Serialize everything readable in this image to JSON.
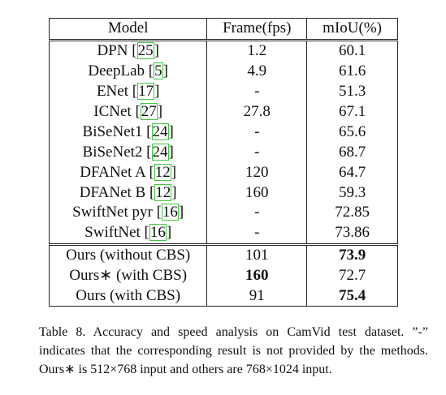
{
  "table": {
    "header": [
      "Model",
      "Frame(fps)",
      "mIoU(%)"
    ],
    "groups": [
      [
        {
          "cells": [
            "DPN",
            "1.2",
            "60.1"
          ],
          "ref": "[25]"
        },
        {
          "cells": [
            "DeepLab",
            "4.9",
            "61.6"
          ],
          "ref": "[5]"
        },
        {
          "cells": [
            "ENet",
            "-",
            "51.3"
          ],
          "ref": "[17]"
        },
        {
          "cells": [
            "ICNet",
            "27.8",
            "67.1"
          ],
          "ref": "[27]"
        },
        {
          "cells": [
            "BiSeNet1",
            "-",
            "65.6"
          ],
          "ref": "[24]"
        },
        {
          "cells": [
            "BiSeNet2",
            "-",
            "68.7"
          ],
          "ref": "[24]"
        },
        {
          "cells": [
            "DFANet A",
            "120",
            "64.7"
          ],
          "ref": "[12]"
        },
        {
          "cells": [
            "DFANet B",
            "160",
            "59.3"
          ],
          "ref": "[12]"
        },
        {
          "cells": [
            "SwiftNet pyr",
            "-",
            "72.85"
          ],
          "ref": "[16]"
        },
        {
          "cells": [
            "SwiftNet",
            "-",
            "73.86"
          ],
          "ref": "[16]"
        }
      ],
      [
        {
          "cells": [
            "Ours (without CBS)",
            "101",
            "73.9"
          ],
          "bold": [
            2
          ]
        },
        {
          "cells": [
            "Ours∗ (with CBS)",
            "160",
            "72.7"
          ],
          "bold": [
            1
          ]
        },
        {
          "cells": [
            "Ours (with CBS)",
            "91",
            "75.4"
          ],
          "bold": [
            2
          ]
        }
      ]
    ]
  },
  "caption": "Table 8. Accuracy and speed analysis on CamVid test dataset. ”-” indicates that the corresponding result is not provided by the methods. Ours∗ is 512×768 input and others are 768×1024 input."
}
